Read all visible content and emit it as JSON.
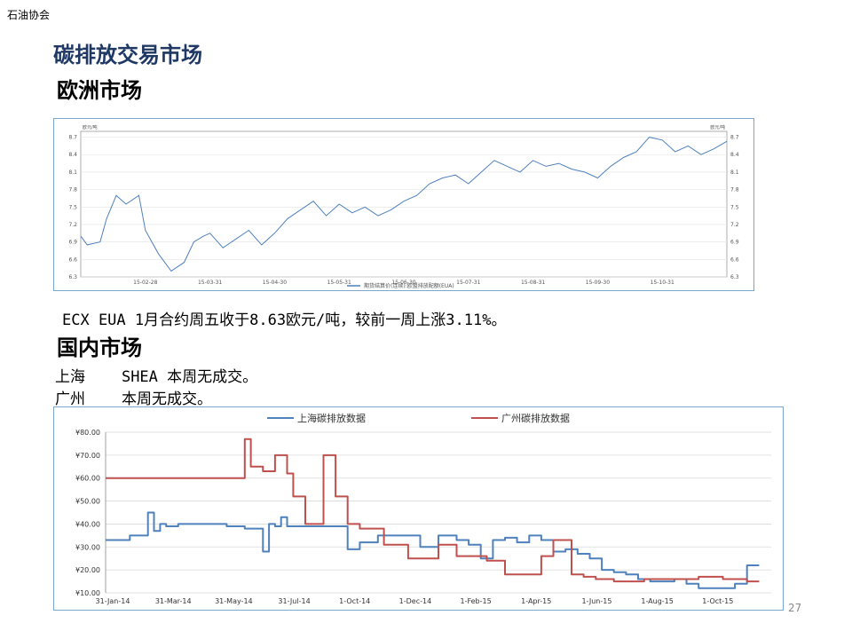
{
  "org_label": "石油协会",
  "title": "碳排放交易市场",
  "europe": {
    "heading": "欧洲市场",
    "summary": "ECX EUA 1月合约周五收于8.63欧元/吨，较前一周上涨3.11%。"
  },
  "domestic": {
    "heading": "国内市场",
    "shanghai": {
      "city": "上海",
      "text": "SHEA 本周无成交。"
    },
    "guangzhou": {
      "city": "广州",
      "text": "本周无成交。"
    }
  },
  "page_number": "27",
  "chart_data": [
    {
      "type": "line",
      "title": "",
      "y_label_left": "欧元/吨",
      "y_label_right": "欧元/吨",
      "ylim": [
        6.3,
        8.8
      ],
      "yticks": [
        6.3,
        6.6,
        6.9,
        7.2,
        7.5,
        7.8,
        8.1,
        8.4,
        8.7
      ],
      "x_tick_labels": [
        "15-02-28",
        "15-03-31",
        "15-04-30",
        "15-05-31",
        "15-06-30",
        "15-07-31",
        "15-08-31",
        "15-09-30",
        "15-10-31"
      ],
      "x_domain": [
        0,
        10
      ],
      "legend_position": "bottom",
      "grid": true,
      "colors": {
        "series": "#4f81bd"
      },
      "series": [
        {
          "name": "期货结算价(连续):欧盟排放配额(EUA)",
          "x": [
            0,
            0.1,
            0.3,
            0.4,
            0.55,
            0.7,
            0.9,
            1.0,
            1.1,
            1.2,
            1.4,
            1.6,
            1.75,
            1.9,
            2.0,
            2.2,
            2.4,
            2.6,
            2.8,
            3.0,
            3.2,
            3.4,
            3.6,
            3.8,
            4.0,
            4.2,
            4.4,
            4.6,
            4.8,
            5.0,
            5.2,
            5.4,
            5.6,
            5.8,
            6.0,
            6.2,
            6.4,
            6.6,
            6.8,
            7.0,
            7.2,
            7.4,
            7.6,
            7.8,
            8.0,
            8.2,
            8.4,
            8.6,
            8.8,
            9.0,
            9.2,
            9.4,
            9.6,
            9.8,
            10
          ],
          "values": [
            7.0,
            6.85,
            6.9,
            7.3,
            7.7,
            7.55,
            7.7,
            7.1,
            6.9,
            6.7,
            6.4,
            6.55,
            6.9,
            7.0,
            7.05,
            6.8,
            6.95,
            7.1,
            6.85,
            7.05,
            7.3,
            7.45,
            7.6,
            7.35,
            7.55,
            7.4,
            7.5,
            7.35,
            7.45,
            7.6,
            7.7,
            7.9,
            8.0,
            8.05,
            7.9,
            8.1,
            8.3,
            8.2,
            8.1,
            8.3,
            8.2,
            8.25,
            8.15,
            8.1,
            8.0,
            8.2,
            8.35,
            8.45,
            8.7,
            8.65,
            8.45,
            8.55,
            8.4,
            8.5,
            8.63
          ]
        }
      ]
    },
    {
      "type": "line",
      "title": "",
      "ylim": [
        10,
        80
      ],
      "yticks": [
        10,
        20,
        30,
        40,
        50,
        60,
        70,
        80
      ],
      "ytick_labels": [
        "¥10.00",
        "¥20.00",
        "¥30.00",
        "¥40.00",
        "¥50.00",
        "¥60.00",
        "¥70.00",
        "¥80.00"
      ],
      "x_tick_labels": [
        "31-Jan-14",
        "31-Mar-14",
        "31-May-14",
        "31-Jul-14",
        "1-Oct-14",
        "1-Dec-14",
        "1-Feb-15",
        "1-Apr-15",
        "1-Jun-15",
        "1-Aug-15",
        "1-Oct-15"
      ],
      "x_domain": [
        0,
        11
      ],
      "legend_position": "top",
      "grid": true,
      "series": [
        {
          "name": "上海碳排放数据",
          "color": "#4f81bd",
          "x": [
            0,
            0.4,
            0.7,
            0.8,
            0.9,
            1.0,
            1.2,
            1.5,
            2.0,
            2.3,
            2.6,
            2.7,
            2.8,
            2.9,
            3.0,
            3.2,
            3.5,
            3.8,
            4.0,
            4.2,
            4.5,
            4.8,
            5.0,
            5.2,
            5.5,
            5.8,
            6.0,
            6.2,
            6.4,
            6.6,
            6.8,
            7.0,
            7.2,
            7.4,
            7.6,
            7.8,
            8.0,
            8.2,
            8.4,
            8.6,
            8.8,
            9.0,
            9.2,
            9.4,
            9.6,
            9.8,
            10.0,
            10.2,
            10.4,
            10.6,
            10.8
          ],
          "values": [
            33,
            35,
            45,
            37,
            40,
            39,
            40,
            40,
            39,
            38,
            28,
            40,
            39,
            43,
            39,
            39,
            39,
            39,
            29,
            32,
            35,
            35,
            35,
            30,
            35,
            33,
            31,
            25,
            33,
            34,
            32,
            35,
            33,
            28,
            29,
            27,
            25,
            20,
            19,
            18,
            16,
            15,
            15,
            16,
            14,
            12,
            12,
            12,
            14,
            22,
            22
          ]
        },
        {
          "name": "广州碳排放数据",
          "color": "#c0504d",
          "x": [
            0,
            0.5,
            1.0,
            1.5,
            2.0,
            2.3,
            2.4,
            2.6,
            2.8,
            3.0,
            3.1,
            3.3,
            3.6,
            3.8,
            4.0,
            4.2,
            4.6,
            5.0,
            5.2,
            5.5,
            5.8,
            6.0,
            6.3,
            6.6,
            6.9,
            7.2,
            7.4,
            7.7,
            7.9,
            8.1,
            8.4,
            8.6,
            8.9,
            9.2,
            9.5,
            9.8,
            10.0,
            10.2,
            10.4,
            10.6,
            10.8
          ],
          "values": [
            60,
            60,
            60,
            60,
            60,
            77,
            65,
            63,
            70,
            62,
            52,
            40,
            70,
            52,
            40,
            38,
            31,
            25,
            25,
            31,
            26,
            26,
            24,
            18,
            18,
            26,
            33,
            18,
            17,
            16,
            15,
            15,
            16,
            16,
            16,
            17,
            17,
            16,
            16,
            15,
            15
          ]
        }
      ]
    }
  ]
}
